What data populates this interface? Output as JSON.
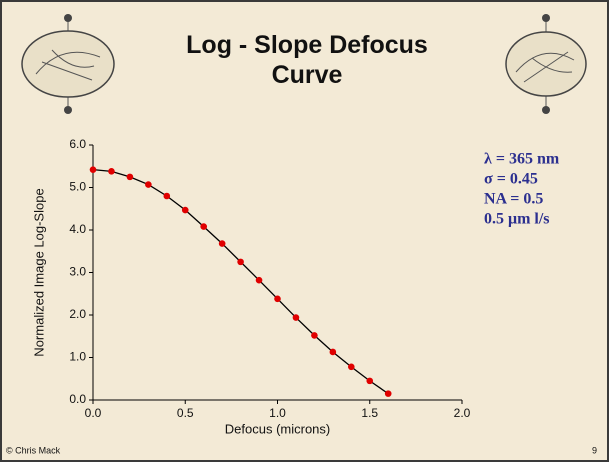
{
  "chart_data": {
    "type": "line",
    "title": "Log - Slope Defocus Curve",
    "x_label": "Defocus (microns)",
    "y_label": "Normalized Image Log-Slope",
    "x": [
      0,
      0.1,
      0.2,
      0.3,
      0.4,
      0.5,
      0.6,
      0.7,
      0.8,
      0.9,
      1.0,
      1.1,
      1.2,
      1.3,
      1.4,
      1.5,
      1.6
    ],
    "series": [
      {
        "color": "#e00000",
        "values": [
          5.42,
          5.38,
          5.25,
          5.07,
          4.8,
          4.47,
          4.08,
          3.68,
          3.25,
          2.82,
          2.38,
          1.94,
          1.52,
          1.13,
          0.78,
          0.45,
          0.15
        ]
      }
    ],
    "xlim": [
      0,
      2.0
    ],
    "ylim": [
      0,
      6.0
    ],
    "xticks": [
      {
        "value": 0,
        "label": "0.0"
      },
      0.5,
      {
        "value": 1,
        "label": "1.0"
      },
      1.5,
      {
        "value": 2,
        "label": "2.0"
      }
    ],
    "yticks": [
      {
        "value": 0,
        "label": "0.0"
      },
      {
        "value": 1,
        "label": "1.0"
      },
      {
        "value": 2,
        "label": "2.0"
      },
      {
        "value": 3,
        "label": "3.0"
      },
      {
        "value": 4,
        "label": "4.0"
      },
      {
        "value": 5,
        "label": "5.0"
      },
      {
        "value": 6,
        "label": "6.0"
      }
    ],
    "annotations": [
      "λ = 365 nm",
      "σ = 0.45",
      "NA = 0.5",
      "0.5 μm l/s"
    ],
    "credit": "© Chris Mack",
    "page_number": "9"
  }
}
